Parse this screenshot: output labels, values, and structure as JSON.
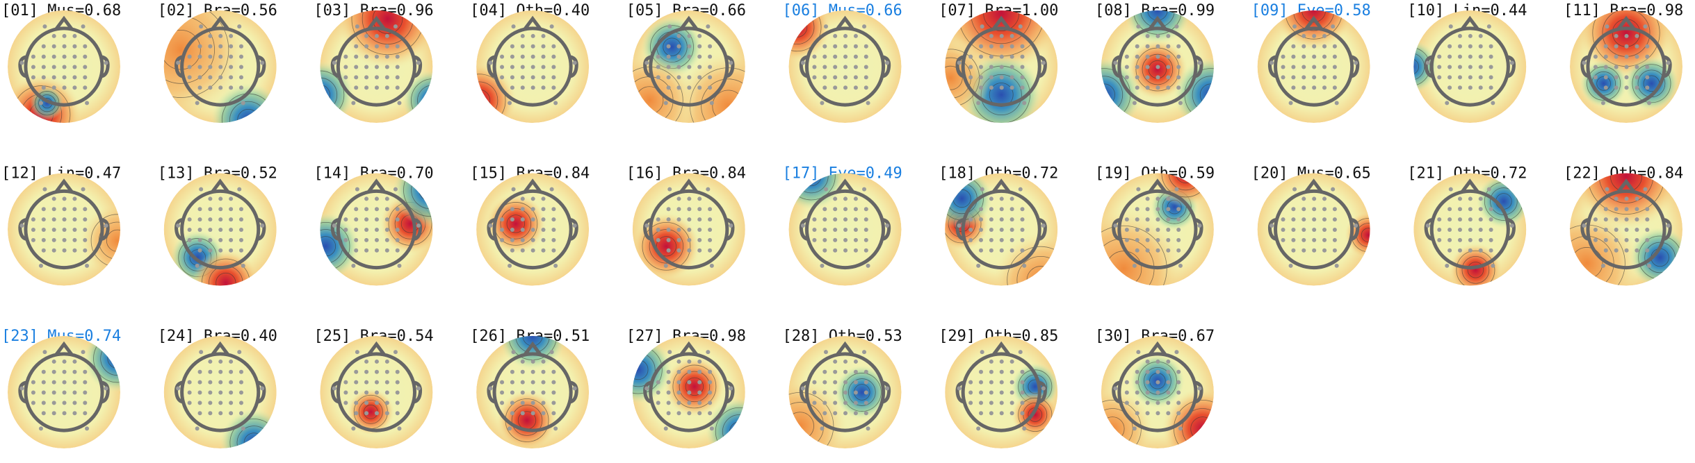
{
  "components": [
    {
      "label": "[01] Mus=0.68",
      "color": "#111111"
    },
    {
      "label": "[02] Bra=0.56",
      "color": "#111111"
    },
    {
      "label": "[03] Bra=0.96",
      "color": "#111111"
    },
    {
      "label": "[04] Oth=0.40",
      "color": "#111111"
    },
    {
      "label": "[05] Bra=0.66",
      "color": "#111111"
    },
    {
      "label": "[06] Mus=0.66",
      "color": "#1a7fe0"
    },
    {
      "label": "[07] Bra=1.00",
      "color": "#111111"
    },
    {
      "label": "[08] Bra=0.99",
      "color": "#111111"
    },
    {
      "label": "[09] Eye=0.58",
      "color": "#1a7fe0"
    },
    {
      "label": "[10] Lin=0.44",
      "color": "#111111"
    },
    {
      "label": "[11] Bra=0.98",
      "color": "#111111"
    },
    {
      "label": "[12] Lin=0.47",
      "color": "#111111"
    },
    {
      "label": "[13] Bra=0.52",
      "color": "#111111"
    },
    {
      "label": "[14] Bra=0.70",
      "color": "#111111"
    },
    {
      "label": "[15] Bra=0.84",
      "color": "#111111"
    },
    {
      "label": "[16] Bra=0.84",
      "color": "#111111"
    },
    {
      "label": "[17] Eye=0.49",
      "color": "#1a7fe0"
    },
    {
      "label": "[18] Oth=0.72",
      "color": "#111111"
    },
    {
      "label": "[19] Oth=0.59",
      "color": "#111111"
    },
    {
      "label": "[20] Mus=0.65",
      "color": "#111111"
    },
    {
      "label": "[21] Oth=0.72",
      "color": "#111111"
    },
    {
      "label": "[22] Oth=0.84",
      "color": "#111111"
    },
    {
      "label": "[23] Mus=0.74",
      "color": "#1a7fe0"
    },
    {
      "label": "[24] Bra=0.40",
      "color": "#111111"
    },
    {
      "label": "[25] Bra=0.54",
      "color": "#111111"
    },
    {
      "label": "[26] Bra=0.51",
      "color": "#111111"
    },
    {
      "label": "[27] Bra=0.98",
      "color": "#111111"
    },
    {
      "label": "[28] Oth=0.53",
      "color": "#111111"
    },
    {
      "label": "[29] Oth=0.85",
      "color": "#111111"
    },
    {
      "label": "[30] Bra=0.67",
      "color": "#111111"
    }
  ]
}
